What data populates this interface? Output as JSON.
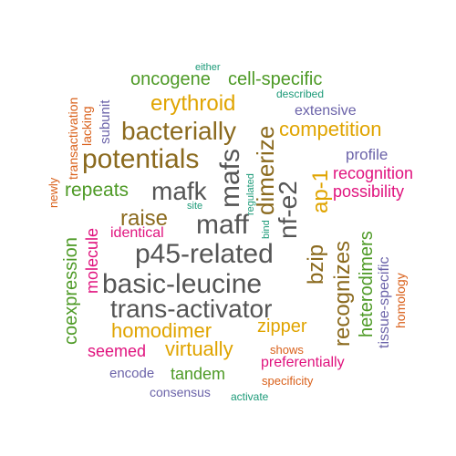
{
  "word_cloud": {
    "words": [
      {
        "text": "p45-related",
        "color": "#555555"
      },
      {
        "text": "basic-leucine",
        "color": "#555555"
      },
      {
        "text": "trans-activator",
        "color": "#555555"
      },
      {
        "text": "maff",
        "color": "#555555"
      },
      {
        "text": "mafk",
        "color": "#555555"
      },
      {
        "text": "mafs",
        "color": "#555555"
      },
      {
        "text": "nf-e2",
        "color": "#555555"
      },
      {
        "text": "dimerize",
        "color": "#8b6a1e"
      },
      {
        "text": "bacterially",
        "color": "#8b6a1e"
      },
      {
        "text": "potentials",
        "color": "#8b6a1e"
      },
      {
        "text": "raise",
        "color": "#8b6a1e"
      },
      {
        "text": "erythroid",
        "color": "#e0a400"
      },
      {
        "text": "oncogene",
        "color": "#4e9a26"
      },
      {
        "text": "cell-specific",
        "color": "#4e9a26"
      },
      {
        "text": "either",
        "color": "#1c9a78"
      },
      {
        "text": "described",
        "color": "#1c9a78"
      },
      {
        "text": "extensive",
        "color": "#6b63a9"
      },
      {
        "text": "competition",
        "color": "#e0a400"
      },
      {
        "text": "profile",
        "color": "#6b63a9"
      },
      {
        "text": "recognition",
        "color": "#e0137e"
      },
      {
        "text": "possibility",
        "color": "#e0137e"
      },
      {
        "text": "ap-1",
        "color": "#e0a400"
      },
      {
        "text": "bzip",
        "color": "#8b6a1e"
      },
      {
        "text": "recognizes",
        "color": "#8b6a1e"
      },
      {
        "text": "heterodimers",
        "color": "#4e9a26"
      },
      {
        "text": "tissue-specific",
        "color": "#6b63a9"
      },
      {
        "text": "homology",
        "color": "#d9601a"
      },
      {
        "text": "repeats",
        "color": "#4e9a26"
      },
      {
        "text": "identical",
        "color": "#e0137e"
      },
      {
        "text": "site",
        "color": "#1c9a78"
      },
      {
        "text": "regulated",
        "color": "#1c9a78"
      },
      {
        "text": "bind",
        "color": "#1c9a78"
      },
      {
        "text": "coexpression",
        "color": "#4e9a26"
      },
      {
        "text": "molecule",
        "color": "#e0137e"
      },
      {
        "text": "newly",
        "color": "#d9601a"
      },
      {
        "text": "transactivation",
        "color": "#d9601a"
      },
      {
        "text": "lacking",
        "color": "#d9601a"
      },
      {
        "text": "subunit",
        "color": "#6b63a9"
      },
      {
        "text": "homodimer",
        "color": "#e0a400"
      },
      {
        "text": "zipper",
        "color": "#e0a400"
      },
      {
        "text": "seemed",
        "color": "#e0137e"
      },
      {
        "text": "virtually",
        "color": "#e0a400"
      },
      {
        "text": "shows",
        "color": "#d9601a"
      },
      {
        "text": "preferentially",
        "color": "#e0137e"
      },
      {
        "text": "encode",
        "color": "#6b63a9"
      },
      {
        "text": "tandem",
        "color": "#4e9a26"
      },
      {
        "text": "specificity",
        "color": "#d9601a"
      },
      {
        "text": "consensus",
        "color": "#6b63a9"
      },
      {
        "text": "activate",
        "color": "#1c9a78"
      }
    ]
  }
}
